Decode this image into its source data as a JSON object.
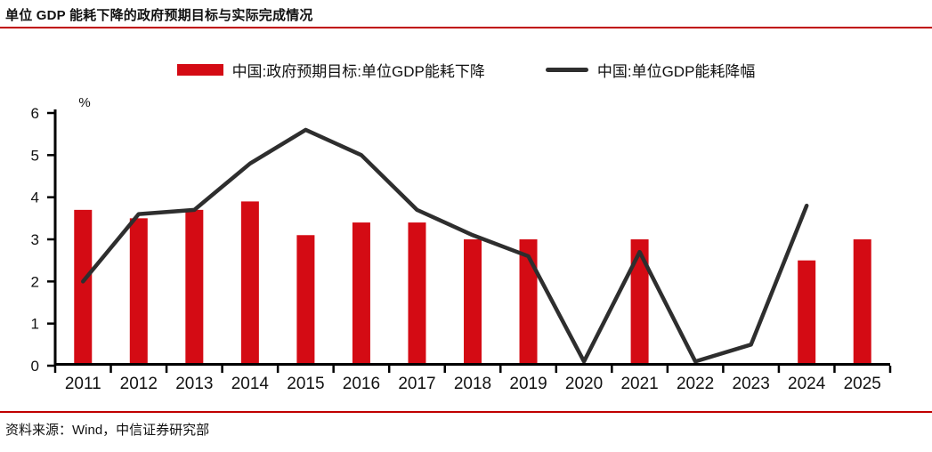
{
  "header": {
    "title": "单位 GDP 能耗下降的政府预期目标与实际完成情况"
  },
  "footer": {
    "source": "资料来源：Wind，中信证券研究部"
  },
  "colors": {
    "accent_rule": "#c00000",
    "bar": "#d40b14",
    "line": "#2e2e2e",
    "axis": "#000000",
    "text": "#111111"
  },
  "chart_data": {
    "type": "bar+line combo",
    "unit_label": "%",
    "categories": [
      "2011",
      "2012",
      "2013",
      "2014",
      "2015",
      "2016",
      "2017",
      "2018",
      "2019",
      "2020",
      "2021",
      "2022",
      "2023",
      "2024",
      "2025"
    ],
    "series": [
      {
        "name": "中国:政府预期目标:单位GDP能耗下降",
        "type": "bar",
        "color": "#d40b14",
        "values": [
          3.7,
          3.5,
          3.7,
          3.9,
          3.1,
          3.4,
          3.4,
          3.0,
          3.0,
          null,
          3.0,
          null,
          null,
          2.5,
          3.0
        ]
      },
      {
        "name": "中国:单位GDP能耗降幅",
        "type": "line",
        "color": "#2e2e2e",
        "values": [
          2.0,
          3.6,
          3.7,
          4.8,
          5.6,
          5.0,
          3.7,
          3.1,
          2.6,
          0.1,
          2.7,
          0.1,
          0.5,
          3.8,
          null
        ]
      }
    ],
    "y_axis": {
      "min": 0,
      "max": 6,
      "ticks": [
        0,
        1,
        2,
        3,
        4,
        5,
        6
      ]
    },
    "grid": false,
    "legend_position": "top-center"
  }
}
